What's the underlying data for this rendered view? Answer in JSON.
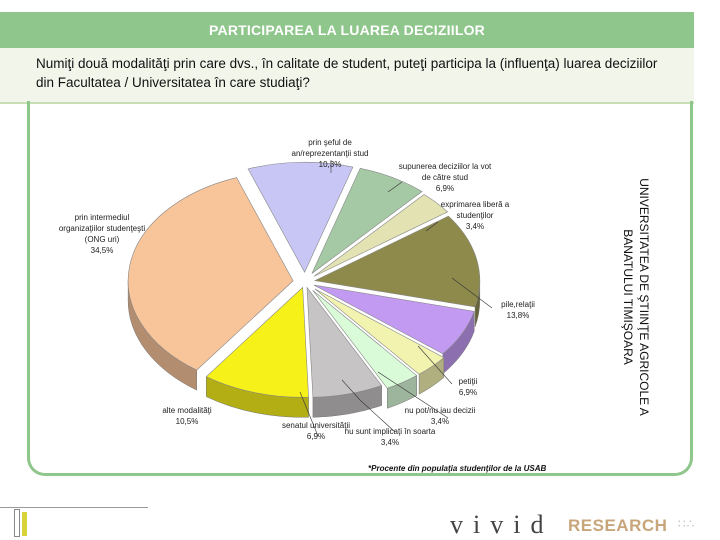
{
  "title": "PARTICIPAREA LA LUAREA DECIZIILOR",
  "question": "Numiţi două modalităţi prin care dvs., în calitate de student, puteţi participa la (influenţa) luarea deciziilor din Facultatea / Universitatea în care studiaţi?",
  "side_note": "UNIVERSITATEA DE ŞTIINŢE AGRICOLE A BANATULUI TIMIŞOARA",
  "footnote": "*Procente din populaţia studenţilor de la USAB",
  "brand": {
    "main": "vivid",
    "sub": "RESEARCH"
  },
  "chart_data": {
    "type": "pie",
    "style": "3d-exploded",
    "unit": "%",
    "slices": [
      {
        "name": "prin şeful de an/reprezentanţii stud",
        "value": 10.3,
        "label": "10,3%",
        "color": "#c7c6f4"
      },
      {
        "name": "supunerea deciziilor la vot de către stud",
        "value": 6.9,
        "label": "6,9%",
        "color": "#a5c9a5"
      },
      {
        "name": "exprimarea liberă a studenţilor",
        "value": 3.4,
        "label": "3,4%",
        "color": "#e3e2b3"
      },
      {
        "name": "pile,relaţii",
        "value": 13.8,
        "label": "13,8%",
        "color": "#8d8a4c"
      },
      {
        "name": "petiţii",
        "value": 6.9,
        "label": "6,9%",
        "color": "#c39af2"
      },
      {
        "name": "nu pot/nu iau decizii",
        "value": 3.4,
        "label": "3,4%",
        "color": "#f3f3b0"
      },
      {
        "name": "nu sunt implicaţi în soarta",
        "value": 3.4,
        "label": "3,4%",
        "color": "#dafbd8"
      },
      {
        "name": "senatul universităţii",
        "value": 6.9,
        "label": "6,9%",
        "color": "#c6c4c4"
      },
      {
        "name": "alte modalităţi",
        "value": 10.5,
        "label": "10,5%",
        "color": "#f7f11a"
      },
      {
        "name": "prin intermediul organizaţiilor studenţeşti (ONG uri)",
        "value": 34.5,
        "label": "34,5%",
        "color": "#f8c49a"
      }
    ],
    "labels_text": [
      {
        "lines": [
          "prin şeful de",
          "an/reprezentanţii stud",
          "10,3%"
        ]
      },
      {
        "lines": [
          "supunerea deciziilor la vot",
          "de către stud",
          "6,9%"
        ]
      },
      {
        "lines": [
          "exprimarea liberă a",
          "studenţilor",
          "3,4%"
        ]
      },
      {
        "lines": [
          "pile,relaţii",
          "13,8%"
        ]
      },
      {
        "lines": [
          "petiţii",
          "6,9%"
        ]
      },
      {
        "lines": [
          "nu pot/nu iau decizii",
          "3,4%"
        ]
      },
      {
        "lines": [
          "nu sunt implicaţi în soarta",
          "3,4%"
        ]
      },
      {
        "lines": [
          "senatul universităţii",
          "6,9%"
        ]
      },
      {
        "lines": [
          "alte modalităţi",
          "10,5%"
        ]
      },
      {
        "lines": [
          "prin intermediul",
          "organizaţiilor studenţeşti",
          "(ONG uri)",
          "34,5%"
        ]
      }
    ]
  }
}
